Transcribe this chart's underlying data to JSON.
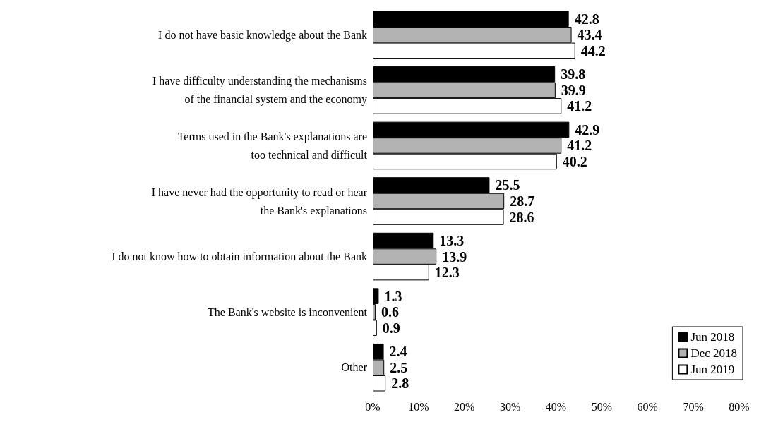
{
  "chart_data": {
    "type": "bar",
    "orientation": "horizontal",
    "categories": [
      "I do not have basic knowledge about the Bank",
      "I have difficulty understanding the mechanisms\nof the financial system and the economy",
      "Terms used in the Bank's explanations are\ntoo technical and difficult",
      "I have never had the opportunity to read or hear\nthe Bank's explanations",
      "I do not know how to obtain information about the Bank",
      "The Bank's website is inconvenient",
      "Other"
    ],
    "series": [
      {
        "name": "Jun 2018",
        "color": "#000000",
        "values": [
          42.8,
          39.8,
          42.9,
          25.5,
          13.3,
          1.3,
          2.4
        ]
      },
      {
        "name": "Dec 2018",
        "color": "#b3b3b3",
        "values": [
          43.4,
          39.9,
          41.2,
          28.7,
          13.9,
          0.6,
          2.5
        ]
      },
      {
        "name": "Jun 2019",
        "color": "#ffffff",
        "values": [
          44.2,
          41.2,
          40.2,
          28.6,
          12.3,
          0.9,
          2.8
        ]
      }
    ],
    "xlim": [
      0,
      80
    ],
    "xticks": [
      {
        "value": 0,
        "label": "0%"
      },
      {
        "value": 10,
        "label": "10%"
      },
      {
        "value": 20,
        "label": "20%"
      },
      {
        "value": 30,
        "label": "30%"
      },
      {
        "value": 40,
        "label": "40%"
      },
      {
        "value": 50,
        "label": "50%"
      },
      {
        "value": 60,
        "label": "60%"
      },
      {
        "value": 70,
        "label": "70%"
      },
      {
        "value": 80,
        "label": "80%"
      }
    ],
    "data_labels": true,
    "grid": false,
    "legend": "bottom right"
  }
}
